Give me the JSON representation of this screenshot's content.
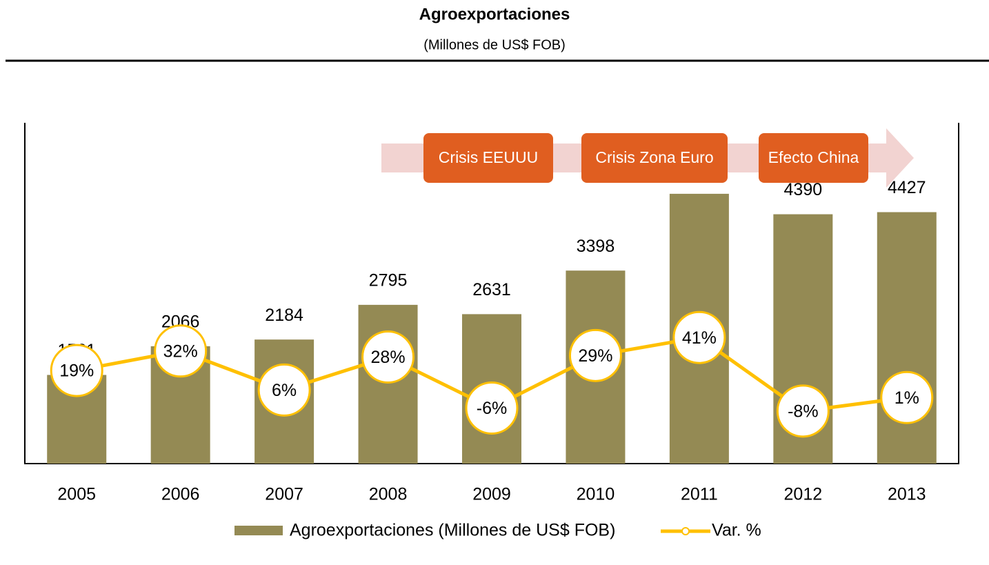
{
  "chart_data": {
    "type": "bar-line",
    "title": "Agroexportaciones",
    "subtitle": "(Millones de US$ FOB)",
    "categories": [
      "2005",
      "2006",
      "2007",
      "2008",
      "2009",
      "2010",
      "2011",
      "2012",
      "2013"
    ],
    "series": [
      {
        "name": "Agroexportaciones (Millones de US$ FOB)",
        "type": "bar",
        "color": "#948a54",
        "values": [
          1561,
          2066,
          2184,
          2795,
          2631,
          3398,
          4750,
          4390,
          4427
        ]
      },
      {
        "name": "Var. %",
        "type": "line",
        "axis": "y2",
        "color": "#ffc000",
        "values": [
          19,
          32,
          6,
          28,
          -6,
          29,
          41,
          -8,
          1
        ],
        "value_labels": [
          "19%",
          "32%",
          "6%",
          "28%",
          "-6%",
          "29%",
          "41%",
          "-8%",
          "1%"
        ]
      }
    ],
    "ylim": [
      0,
      6000
    ],
    "y2lim": [
      -43,
      184
    ],
    "annotations": [
      "Crisis EEUUU",
      "Crisis Zona Euro",
      "Efecto China"
    ],
    "annotation_color": "#e05e20",
    "legend": "bottom"
  }
}
